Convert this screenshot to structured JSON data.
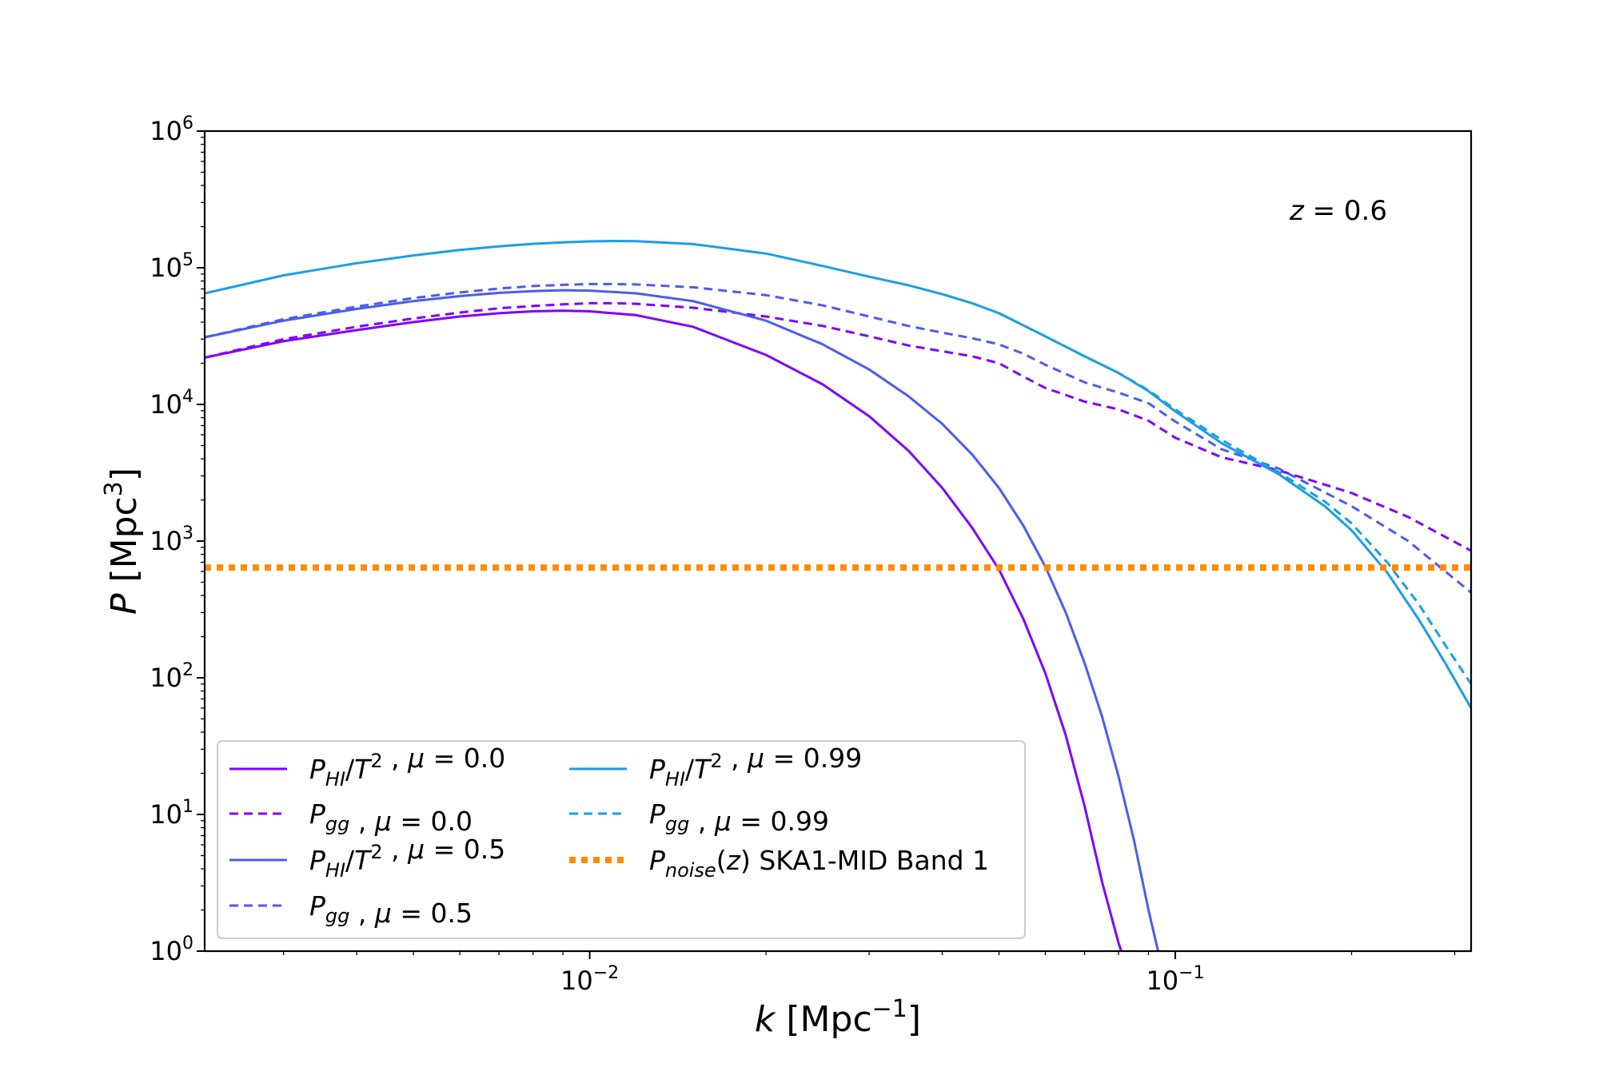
{
  "chart_data": {
    "type": "line",
    "title": "",
    "xlabel": {
      "var": "k",
      "unit_base": "Mpc",
      "unit_exp": "−1"
    },
    "ylabel": {
      "var": "P",
      "unit_base": "Mpc",
      "unit_exp": "3"
    },
    "xscale": "log",
    "yscale": "log",
    "xlim": [
      0.0022,
      0.32
    ],
    "ylim": [
      1,
      1000000
    ],
    "x_ticks": [
      {
        "value": 0.01,
        "base": "10",
        "exp": "−2"
      },
      {
        "value": 0.1,
        "base": "10",
        "exp": "−1"
      }
    ],
    "y_ticks": [
      {
        "value": 1,
        "base": "10",
        "exp": "0"
      },
      {
        "value": 10,
        "base": "10",
        "exp": "1"
      },
      {
        "value": 100,
        "base": "10",
        "exp": "2"
      },
      {
        "value": 1000,
        "base": "10",
        "exp": "3"
      },
      {
        "value": 10000,
        "base": "10",
        "exp": "4"
      },
      {
        "value": 100000,
        "base": "10",
        "exp": "5"
      },
      {
        "value": 1000000,
        "base": "10",
        "exp": "6"
      }
    ],
    "annotation": {
      "var": "z",
      "text": " = 0.6",
      "position": "top-right"
    },
    "legend_position": "lower-left",
    "grid": false,
    "series": [
      {
        "key": "phi_mu0",
        "legend": {
          "main": "P",
          "sub": "HI",
          "rest": "/T",
          "sup": "2",
          "tail": " , μ = 0.0"
        },
        "color": "#7f00ff",
        "style": "solid",
        "x": [
          0.0022,
          0.003,
          0.004,
          0.005,
          0.006,
          0.007,
          0.008,
          0.009,
          0.01,
          0.012,
          0.015,
          0.02,
          0.025,
          0.03,
          0.035,
          0.04,
          0.045,
          0.05,
          0.055,
          0.06,
          0.065,
          0.07,
          0.075,
          0.08,
          0.0815
        ],
        "y": [
          22000,
          29000,
          35000,
          40000,
          44000,
          46500,
          48000,
          48500,
          48000,
          45000,
          37000,
          23000,
          14000,
          8200,
          4600,
          2450,
          1250,
          620,
          270,
          108,
          38,
          11.5,
          3.2,
          1.15,
          0.9
        ]
      },
      {
        "key": "pgg_mu0",
        "legend": {
          "main": "P",
          "sub": "gg",
          "rest": "",
          "sup": "",
          "tail": " , μ = 0.0"
        },
        "color": "#7f00ff",
        "style": "dashed",
        "x": [
          0.0022,
          0.003,
          0.004,
          0.005,
          0.006,
          0.007,
          0.008,
          0.009,
          0.01,
          0.011,
          0.012,
          0.015,
          0.02,
          0.025,
          0.03,
          0.035,
          0.04,
          0.045,
          0.05,
          0.055,
          0.06,
          0.07,
          0.08,
          0.09,
          0.1,
          0.12,
          0.15,
          0.2,
          0.25,
          0.32
        ],
        "y": [
          22000,
          30000,
          37000,
          42500,
          47000,
          50500,
          52500,
          54000,
          55000,
          55000,
          54500,
          51000,
          44000,
          37500,
          31500,
          27000,
          24500,
          22500,
          20000,
          16000,
          13200,
          10500,
          9200,
          7600,
          5700,
          4100,
          3300,
          2250,
          1500,
          850
        ]
      },
      {
        "key": "phi_mu05",
        "legend": {
          "main": "P",
          "sub": "HI",
          "rest": "/T",
          "sup": "2",
          "tail": " , μ = 0.5"
        },
        "color": "#4b5cf0",
        "style": "solid",
        "x": [
          0.0022,
          0.003,
          0.004,
          0.005,
          0.006,
          0.007,
          0.008,
          0.009,
          0.01,
          0.012,
          0.015,
          0.02,
          0.025,
          0.03,
          0.035,
          0.04,
          0.045,
          0.05,
          0.055,
          0.06,
          0.065,
          0.07,
          0.075,
          0.08,
          0.085,
          0.09,
          0.094
        ],
        "y": [
          31000,
          41000,
          50000,
          57000,
          62000,
          65500,
          67500,
          68500,
          68000,
          65000,
          57000,
          41000,
          27500,
          18000,
          11500,
          7200,
          4300,
          2450,
          1300,
          650,
          300,
          128,
          52,
          19,
          6.5,
          2.0,
          0.9
        ]
      },
      {
        "key": "pgg_mu05",
        "legend": {
          "main": "P",
          "sub": "gg",
          "rest": "",
          "sup": "",
          "tail": " , μ = 0.5"
        },
        "color": "#4b5cf0",
        "style": "dashed",
        "x": [
          0.0022,
          0.003,
          0.004,
          0.005,
          0.006,
          0.007,
          0.008,
          0.009,
          0.01,
          0.011,
          0.012,
          0.015,
          0.02,
          0.025,
          0.03,
          0.035,
          0.04,
          0.045,
          0.05,
          0.055,
          0.06,
          0.07,
          0.08,
          0.09,
          0.1,
          0.12,
          0.15,
          0.2,
          0.25,
          0.32
        ],
        "y": [
          31000,
          42000,
          52000,
          60000,
          66000,
          70500,
          73500,
          75000,
          76000,
          76000,
          75500,
          72000,
          63000,
          53000,
          44000,
          37500,
          33500,
          30500,
          27500,
          23500,
          19500,
          14500,
          12200,
          10200,
          7500,
          4700,
          3400,
          1800,
          1000,
          420
        ]
      },
      {
        "key": "phi_mu099",
        "legend": {
          "main": "P",
          "sub": "HI",
          "rest": "/T",
          "sup": "2",
          "tail": " , μ = 0.99"
        },
        "color": "#1a9ee6",
        "style": "solid",
        "x": [
          0.0022,
          0.003,
          0.004,
          0.005,
          0.006,
          0.007,
          0.008,
          0.009,
          0.01,
          0.011,
          0.012,
          0.015,
          0.02,
          0.025,
          0.03,
          0.035,
          0.04,
          0.045,
          0.05,
          0.06,
          0.07,
          0.08,
          0.09,
          0.1,
          0.12,
          0.15,
          0.18,
          0.2,
          0.23,
          0.26,
          0.29,
          0.32
        ],
        "y": [
          65000,
          88000,
          108000,
          123000,
          135000,
          143500,
          149500,
          153500,
          156000,
          157000,
          156500,
          149000,
          127000,
          103000,
          86000,
          74500,
          64000,
          55000,
          46500,
          31500,
          22500,
          17000,
          12500,
          8900,
          5200,
          3100,
          1800,
          1200,
          590,
          270,
          125,
          60
        ]
      },
      {
        "key": "pgg_mu099",
        "legend": {
          "main": "P",
          "sub": "gg",
          "rest": "",
          "sup": "",
          "tail": " , μ = 0.99"
        },
        "color": "#1a9ee6",
        "style": "dashed",
        "x": [
          0.05,
          0.06,
          0.07,
          0.08,
          0.09,
          0.1,
          0.12,
          0.15,
          0.18,
          0.2,
          0.23,
          0.26,
          0.29,
          0.32
        ],
        "y": [
          46500,
          31500,
          22500,
          17000,
          12700,
          9200,
          5500,
          3200,
          1950,
          1350,
          700,
          350,
          170,
          90
        ]
      },
      {
        "key": "pnoise",
        "legend": {
          "main": "P",
          "sub": "noise",
          "rest": "(z) SKA1-MID Band 1",
          "sup": "",
          "tail": ""
        },
        "color": "#ff8c00",
        "style": "dotted",
        "x": [
          0.0022,
          0.32
        ],
        "y": [
          640,
          640
        ]
      }
    ]
  }
}
